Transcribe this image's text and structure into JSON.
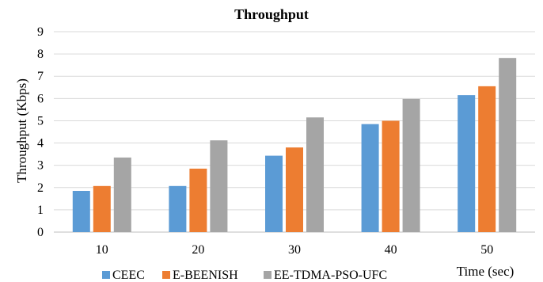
{
  "chart_data": {
    "type": "bar",
    "title": "Throughput",
    "xlabel": "Time (sec)",
    "ylabel": "Throughput (Kbps)",
    "categories": [
      "10",
      "20",
      "30",
      "40",
      "50"
    ],
    "ylim": [
      0,
      9
    ],
    "yticks": [
      "0",
      "1",
      "2",
      "3",
      "4",
      "5",
      "6",
      "7",
      "8",
      "9"
    ],
    "grid": true,
    "legend_position": "bottom",
    "series": [
      {
        "name": "CEEC",
        "color": "#5b9bd5",
        "values": [
          1.85,
          2.07,
          3.43,
          4.85,
          6.15
        ]
      },
      {
        "name": "E-BEENISH",
        "color": "#ed7d31",
        "values": [
          2.07,
          2.85,
          3.8,
          5.0,
          6.55
        ]
      },
      {
        "name": "EE-TDMA-PSO-UFC",
        "color": "#a5a5a5",
        "values": [
          3.35,
          4.12,
          5.15,
          5.98,
          7.82
        ]
      }
    ]
  }
}
